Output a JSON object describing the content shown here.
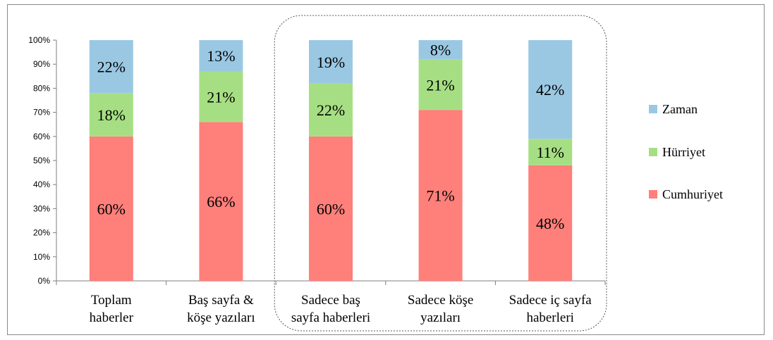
{
  "chart_data": {
    "type": "bar",
    "stacked": true,
    "percent": true,
    "title": "",
    "xlabel": "",
    "ylabel": "",
    "ylim": [
      0,
      100
    ],
    "yticks": [
      "0%",
      "10%",
      "20%",
      "30%",
      "40%",
      "50%",
      "60%",
      "70%",
      "80%",
      "90%",
      "100%"
    ],
    "grid": false,
    "legend_position": "right",
    "categories": [
      [
        "Toplam",
        "haberler"
      ],
      [
        "Baş sayfa &",
        "köşe yazıları"
      ],
      [
        "Sadece baş",
        "sayfa haberleri"
      ],
      [
        "Sadece köşe",
        "yazıları"
      ],
      [
        "Sadece iç sayfa",
        "haberleri"
      ]
    ],
    "highlight_group": [
      2,
      4
    ],
    "series": [
      {
        "name": "Cumhuriyet",
        "color": "#ff7f7a",
        "values": [
          60,
          66,
          60,
          71,
          48
        ],
        "labels": [
          "60%",
          "66%",
          "60%",
          "71%",
          "48%"
        ]
      },
      {
        "name": "Hürriyet",
        "color": "#a6df83",
        "values": [
          18,
          21,
          22,
          21,
          11
        ],
        "labels": [
          "18%",
          "21%",
          "22%",
          "21%",
          "11%"
        ]
      },
      {
        "name": "Zaman",
        "color": "#9ac8e3",
        "values": [
          22,
          13,
          19,
          8,
          42
        ],
        "labels": [
          "22%",
          "13%",
          "19%",
          "8%",
          "42%"
        ]
      }
    ],
    "legend_order": [
      "Zaman",
      "Hürriyet",
      "Cumhuriyet"
    ]
  }
}
